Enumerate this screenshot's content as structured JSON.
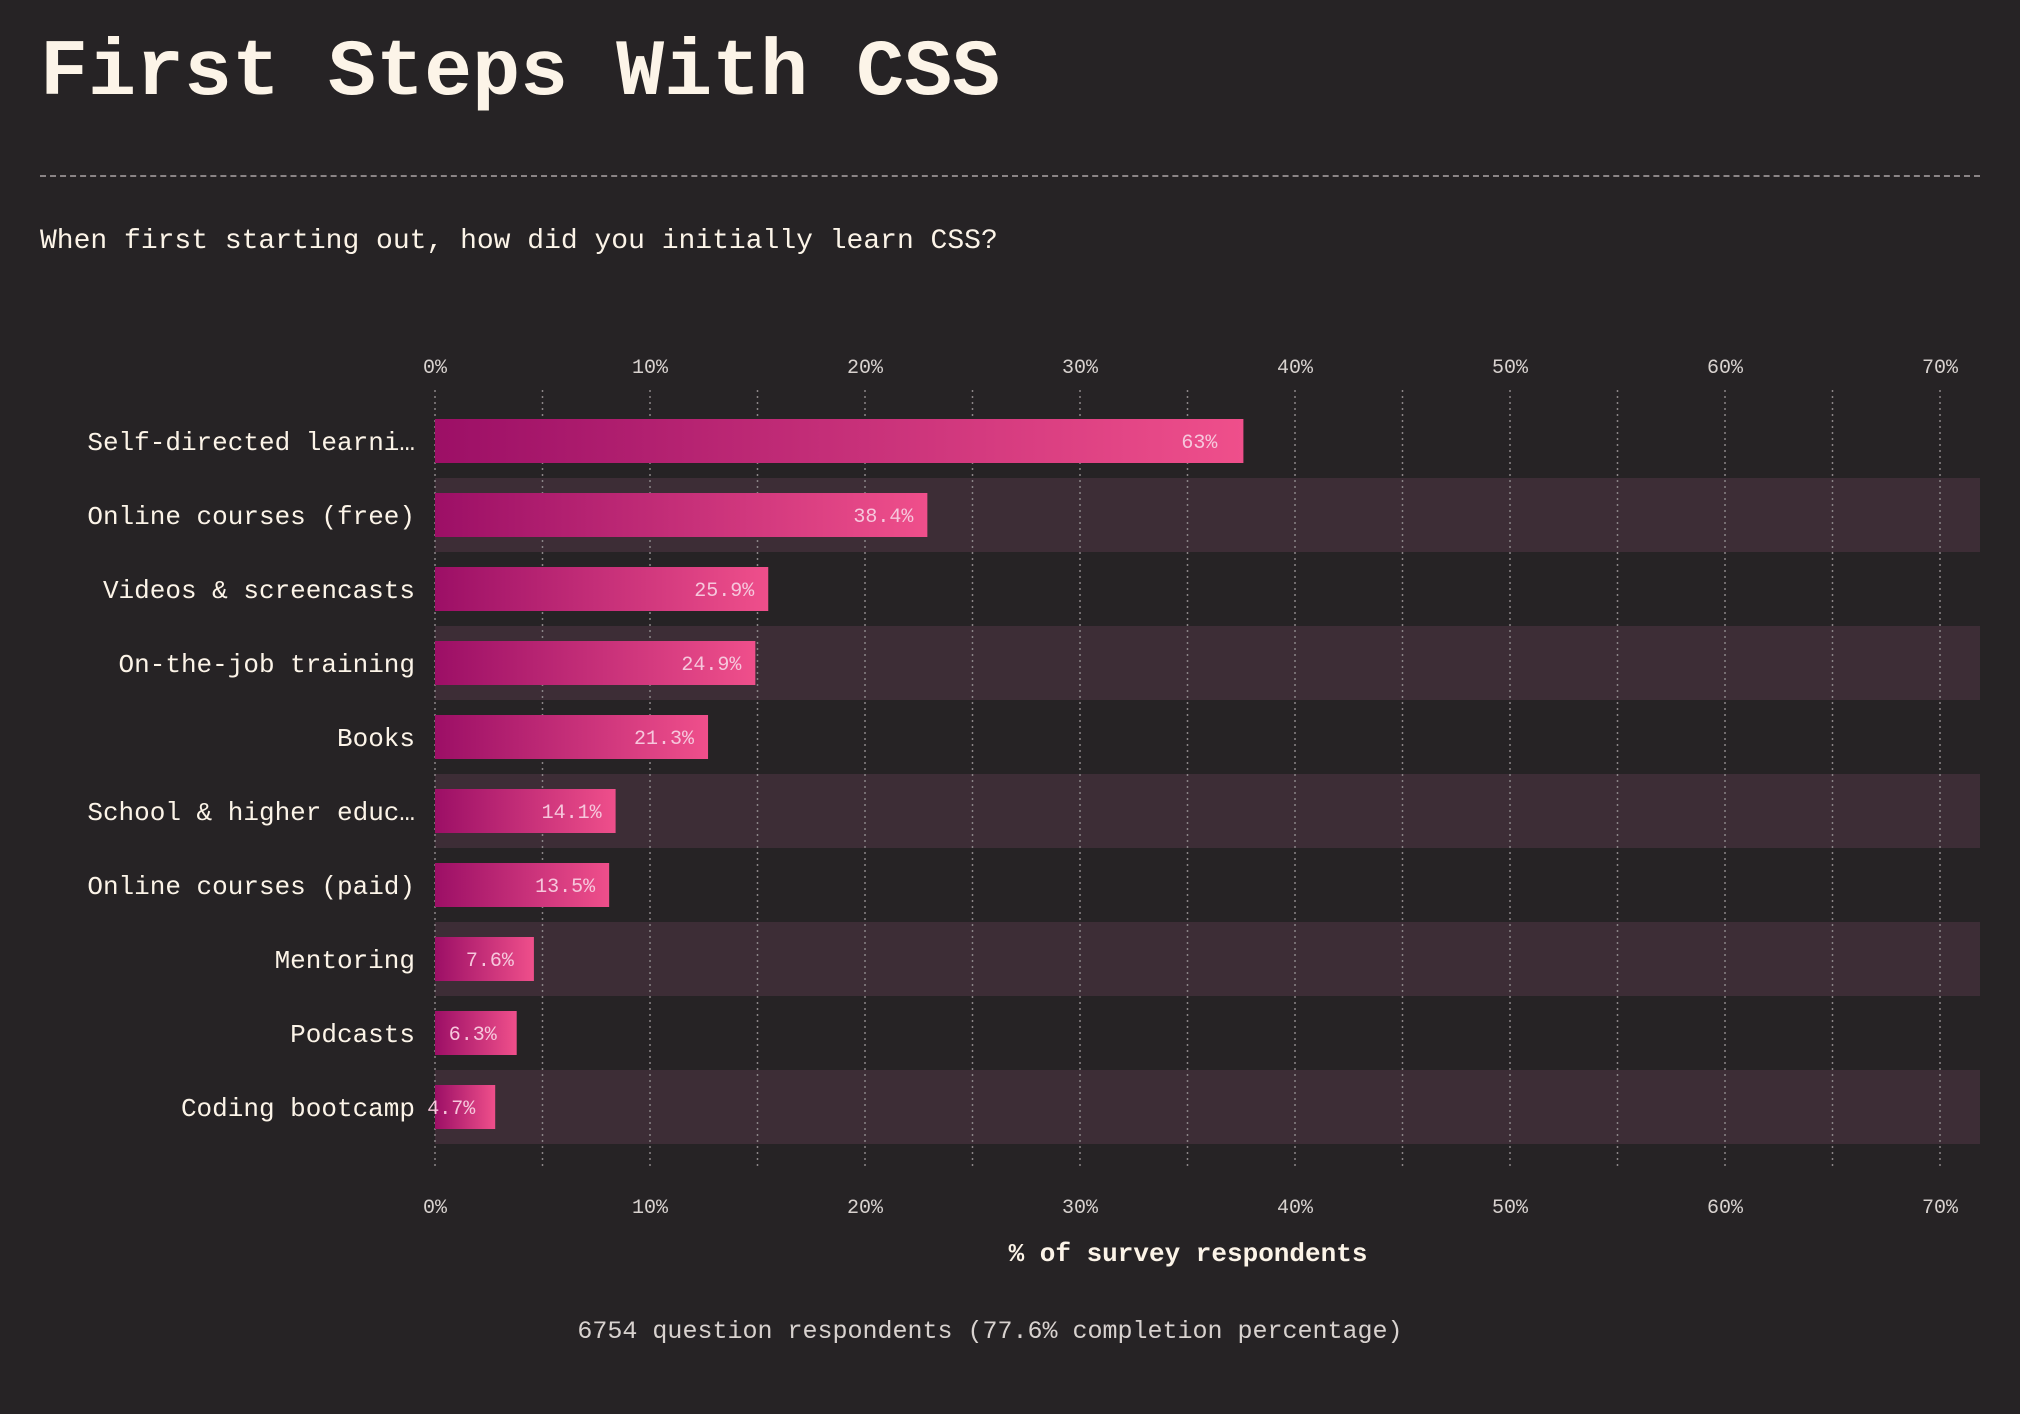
{
  "title": "First Steps With CSS",
  "question": "When first starting out, how did you initially learn CSS?",
  "caption": "6754 question respondents (77.6% completion percentage)",
  "colors": {
    "background": "#262325",
    "text": "#fcf4e8",
    "bar_start": "#9c0f66",
    "bar_end": "#ef4f8b",
    "band": "#3d2d36",
    "grid": "#8a8486"
  },
  "chart_data": {
    "type": "bar",
    "orientation": "horizontal",
    "categories": [
      "Self-directed learni…",
      "Online courses (free)",
      "Videos & screencasts",
      "On-the-job training",
      "Books",
      "School & higher educ…",
      "Online courses (paid)",
      "Mentoring",
      "Podcasts",
      "Coding bootcamp"
    ],
    "values": [
      37.6,
      22.9,
      15.5,
      14.9,
      12.7,
      8.4,
      8.1,
      4.6,
      3.8,
      2.8
    ],
    "bar_labels": [
      "63%",
      "38.4%",
      "25.9%",
      "24.9%",
      "21.3%",
      "14.1%",
      "13.5%",
      "7.6%",
      "6.3%",
      "4.7%"
    ],
    "xlim": [
      0,
      72
    ],
    "xticks": [
      0,
      10,
      20,
      30,
      40,
      50,
      60,
      70
    ],
    "xtick_labels": [
      "0%",
      "10%",
      "20%",
      "30%",
      "40%",
      "50%",
      "60%",
      "70%"
    ],
    "xlabel": "% of survey respondents",
    "grid": "vertical dotted, every 5%"
  }
}
